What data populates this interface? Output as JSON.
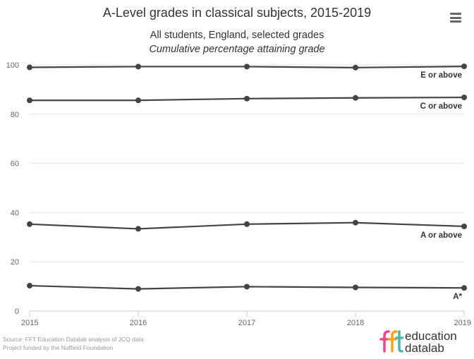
{
  "header": {
    "title": "A-Level grades in classical subjects, 2015-2019",
    "subtitle_line1": "All students, England, selected grades",
    "subtitle_line2": "Cumulative percentage attaining grade"
  },
  "menu": {
    "icon": "hamburger-menu-icon"
  },
  "footer": {
    "source_line1": "Source: FFT Education Datalab analysis of JCQ data",
    "source_line2": "Project funded by the Nuffield Foundation",
    "logo_word1": "education",
    "logo_word2": "datalab",
    "logo_colors": [
      "#e8478b",
      "#f7a21b",
      "#4db6ac"
    ]
  },
  "chart_data": {
    "type": "line",
    "x": [
      2015,
      2016,
      2017,
      2018,
      2019
    ],
    "xlim": [
      2015,
      2019
    ],
    "ylim": [
      0,
      100
    ],
    "yticks": [
      0,
      20,
      40,
      60,
      80,
      100
    ],
    "grid": true,
    "line_color": "#444444",
    "series": [
      {
        "name": "E or above",
        "values": [
          99.0,
          99.3,
          99.3,
          98.9,
          99.4
        ]
      },
      {
        "name": "C or above",
        "values": [
          85.6,
          85.6,
          86.3,
          86.6,
          86.8
        ]
      },
      {
        "name": "A or above",
        "values": [
          35.3,
          33.4,
          35.3,
          35.9,
          34.4
        ]
      },
      {
        "name": "A*",
        "values": [
          10.3,
          9.0,
          9.9,
          9.6,
          9.4
        ]
      }
    ]
  }
}
